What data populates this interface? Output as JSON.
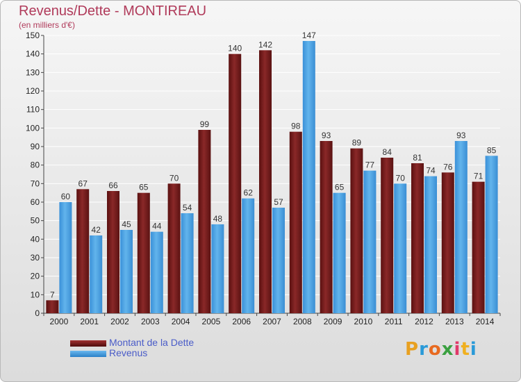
{
  "header": {
    "title": "Revenus/Dette - MONTIREAU",
    "subtitle": "(en milliers d'€)"
  },
  "chart_data": {
    "type": "bar",
    "title": "Revenus/Dette - MONTIREAU",
    "subtitle": "(en milliers d'€)",
    "xlabel": "",
    "ylabel": "",
    "categories": [
      "2000",
      "2001",
      "2002",
      "2003",
      "2004",
      "2005",
      "2006",
      "2007",
      "2008",
      "2009",
      "2010",
      "2011",
      "2012",
      "2013",
      "2014"
    ],
    "series": [
      {
        "name": "Montant de la Dette",
        "color": "#7a1c1c",
        "values": [
          7,
          67,
          66,
          65,
          70,
          99,
          140,
          142,
          98,
          93,
          89,
          84,
          81,
          76,
          71
        ]
      },
      {
        "name": "Revenus",
        "color": "#3a9de0",
        "values": [
          60,
          42,
          45,
          44,
          54,
          48,
          62,
          57,
          147,
          65,
          77,
          70,
          74,
          93,
          85
        ]
      }
    ],
    "ylim": [
      0,
      150
    ],
    "yticks": [
      0,
      10,
      20,
      30,
      40,
      50,
      60,
      70,
      80,
      90,
      100,
      110,
      120,
      130,
      140,
      150
    ],
    "grid": true,
    "legend_position": "bottom-left"
  },
  "logo": {
    "letters": [
      "P",
      "r",
      "o",
      "x",
      "i",
      "t",
      "i"
    ],
    "colors": [
      "#e8a020",
      "#2a9ad8",
      "#e86a20",
      "#3aa040",
      "#e03a6a",
      "#f0b020",
      "#2a9ad8"
    ]
  }
}
